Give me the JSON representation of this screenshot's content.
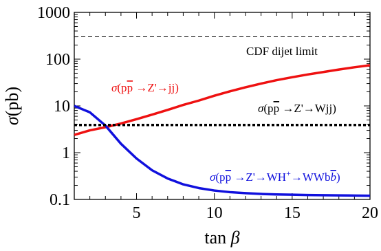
{
  "chart_data": {
    "type": "line",
    "xlabel_text": "tan",
    "xlabel_symbol": "β",
    "ylabel_symbol": "σ",
    "ylabel_unit": "(pb)",
    "xlim": [
      1,
      20
    ],
    "ylim": [
      0.1,
      1000
    ],
    "yscale": "log",
    "xticks": [
      {
        "value": 5,
        "label": "5"
      },
      {
        "value": 10,
        "label": "10"
      },
      {
        "value": 15,
        "label": "15"
      },
      {
        "value": 20,
        "label": "20"
      }
    ],
    "yticks": [
      {
        "value": 0.1,
        "label": "0.1"
      },
      {
        "value": 1,
        "label": "1"
      },
      {
        "value": 10,
        "label": "10"
      },
      {
        "value": 100,
        "label": "100"
      },
      {
        "value": 1000,
        "label": "1000"
      }
    ],
    "series": [
      {
        "key": "jj",
        "color": "#ee1111",
        "style": "solid",
        "x": [
          1,
          2,
          3,
          4,
          5,
          6,
          7,
          8,
          9,
          10,
          11,
          12,
          13,
          14,
          15,
          16,
          17,
          18,
          19,
          20
        ],
        "y": [
          2.4,
          3.0,
          3.5,
          4.2,
          5.2,
          6.5,
          8.2,
          10.5,
          13.0,
          16.5,
          20.5,
          25.0,
          30.0,
          35.5,
          41.0,
          47.0,
          53.0,
          60.0,
          67.0,
          74.0
        ]
      },
      {
        "key": "wh",
        "color": "#1010dd",
        "style": "solid",
        "x": [
          1,
          2,
          3,
          4,
          5,
          6,
          7,
          8,
          9,
          10,
          11,
          12,
          13,
          14,
          15,
          16,
          17,
          18,
          19,
          20
        ],
        "y": [
          10.0,
          7.3,
          3.8,
          1.55,
          0.75,
          0.42,
          0.28,
          0.21,
          0.175,
          0.155,
          0.143,
          0.136,
          0.131,
          0.128,
          0.126,
          0.124,
          0.123,
          0.122,
          0.121,
          0.12
        ]
      },
      {
        "key": "wjj",
        "color": "#000000",
        "style": "dotted",
        "x": [
          1,
          20
        ],
        "y": [
          3.9,
          3.9
        ]
      },
      {
        "key": "cdf",
        "color": "#000000",
        "style": "dashed",
        "x": [
          1,
          20
        ],
        "y": [
          300,
          300
        ]
      }
    ],
    "annotations": {
      "cdf_label": "CDF dijet limit",
      "jj": {
        "color": "#ee1111",
        "sigma": "σ",
        "open": "(p",
        "pbar": "p",
        "rest": " →Z'→jj)"
      },
      "wjj": {
        "color": "#000000",
        "sigma": "σ",
        "open": "(p",
        "pbar": "p",
        "rest": " →Z'→Wjj)"
      },
      "wh": {
        "color": "#1010dd",
        "sigma": "σ",
        "open": "(p",
        "pbar": "p",
        "mid": " →Z'→WH",
        "sup": "+",
        "rest": "→WWb",
        "bbar": "b",
        "close": ")"
      }
    }
  }
}
